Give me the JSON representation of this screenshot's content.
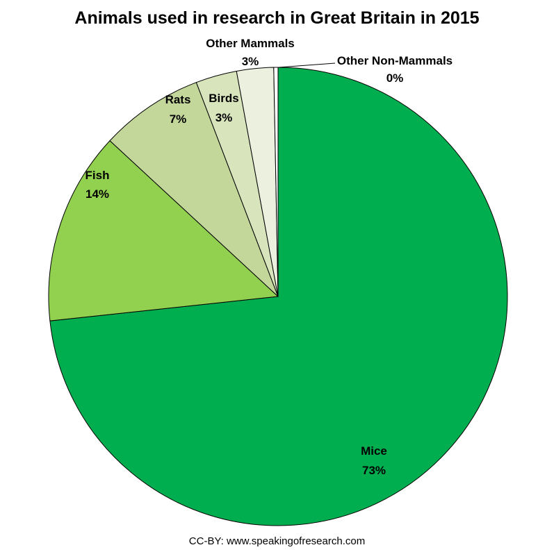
{
  "chart_data": {
    "type": "pie",
    "title": "Animals used in research in Great Britain in 2015",
    "start_angle": "12 o'clock",
    "direction": "clockwise",
    "slices": [
      {
        "name": "Mice",
        "value": 73.3,
        "label": "73%",
        "color": "#00AE4F"
      },
      {
        "name": "Fish",
        "value": 13.6,
        "label": "14%",
        "color": "#92D050"
      },
      {
        "name": "Rats",
        "value": 7.3,
        "label": "7%",
        "color": "#C4D79B"
      },
      {
        "name": "Birds",
        "value": 2.9,
        "label": "3%",
        "color": "#D8E4BC"
      },
      {
        "name": "Other Mammals",
        "value": 2.6,
        "label": "3%",
        "color": "#EBF1DE"
      },
      {
        "name": "Other Non-Mammals",
        "value": 0.3,
        "label": "0%",
        "color": "#FFFFFF"
      }
    ]
  },
  "footer": {
    "credit": "CC-BY: www.speakingofresearch.com"
  }
}
